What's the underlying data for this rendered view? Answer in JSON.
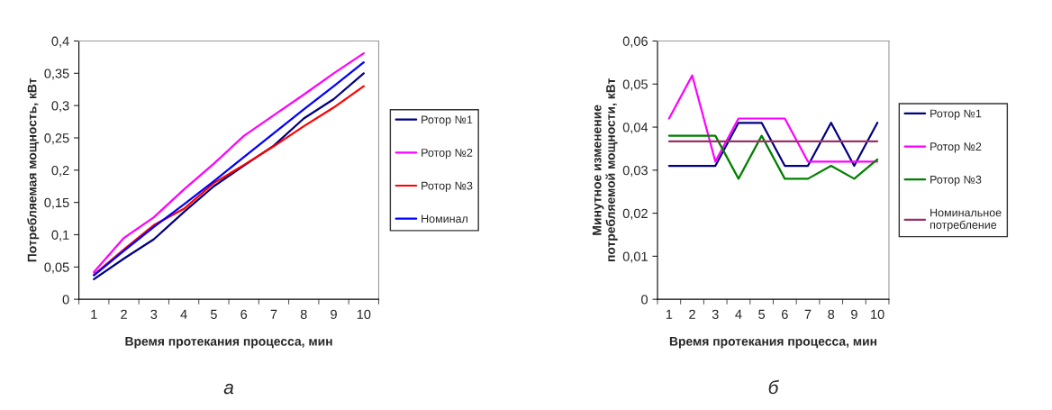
{
  "chart_data": [
    {
      "type": "line",
      "xlabel": "Время протекания процесса, мин",
      "ylabel": "Потребляемая мощность, кВт",
      "categories": [
        "1",
        "2",
        "3",
        "4",
        "5",
        "6",
        "7",
        "8",
        "9",
        "10"
      ],
      "series": [
        {
          "name": "Ротор №1",
          "color": "#000080",
          "values": [
            0.031,
            0.063,
            0.093,
            0.135,
            0.175,
            0.207,
            0.238,
            0.28,
            0.31,
            0.35
          ]
        },
        {
          "name": "Ротор №2",
          "color": "#ff00ff",
          "values": [
            0.042,
            0.095,
            0.127,
            0.17,
            0.21,
            0.253,
            0.285,
            0.317,
            0.35,
            0.381
          ]
        },
        {
          "name": "Ротор №3",
          "color": "#ff0000",
          "values": [
            0.038,
            0.077,
            0.115,
            0.14,
            0.18,
            0.208,
            0.237,
            0.268,
            0.297,
            0.33
          ]
        },
        {
          "name": "Номинал",
          "color": "#0000ff",
          "values": [
            0.037,
            0.075,
            0.112,
            0.147,
            0.183,
            0.22,
            0.257,
            0.294,
            0.33,
            0.367
          ]
        }
      ],
      "ylim": [
        0,
        0.4
      ],
      "yticks": [
        0,
        {
          "value": 0.05,
          "label": "0,05"
        },
        {
          "value": 0.1,
          "label": "0,1"
        },
        {
          "value": 0.15,
          "label": "0,15"
        },
        {
          "value": 0.2,
          "label": "0,2"
        },
        {
          "value": 0.25,
          "label": "0,25"
        },
        {
          "value": 0.3,
          "label": "0,3"
        },
        {
          "value": 0.35,
          "label": "0,35"
        },
        {
          "value": 0.4,
          "label": "0,4"
        }
      ],
      "legend": "right",
      "grid": false,
      "annotations": [
        "а"
      ]
    },
    {
      "type": "line",
      "xlabel": "Время протекания процесса, мин",
      "ylabel": "Минутное изменение\nпотребляемой мощности, кВт",
      "categories": [
        "1",
        "2",
        "3",
        "4",
        "5",
        "6",
        "7",
        "8",
        "9",
        "10"
      ],
      "series": [
        {
          "name": "Ротор №1",
          "color": "#000080",
          "values": [
            0.031,
            0.031,
            0.031,
            0.041,
            0.041,
            0.031,
            0.031,
            0.041,
            0.031,
            0.041
          ]
        },
        {
          "name": "Ротор №2",
          "color": "#ff00ff",
          "values": [
            0.042,
            0.052,
            0.032,
            0.042,
            0.042,
            0.042,
            0.032,
            0.032,
            0.032,
            0.032
          ]
        },
        {
          "name": "Ротор №3",
          "color": "#008000",
          "values": [
            0.038,
            0.038,
            0.038,
            0.028,
            0.038,
            0.028,
            0.028,
            0.031,
            0.028,
            0.0325
          ]
        },
        {
          "name": "Номинальное потребление",
          "color": "#993366",
          "values": [
            0.0367,
            0.0367,
            0.0367,
            0.0367,
            0.0367,
            0.0367,
            0.0367,
            0.0367,
            0.0367,
            0.0367
          ]
        }
      ],
      "ylim": [
        0,
        0.06
      ],
      "yticks": [
        0,
        {
          "value": 0.01,
          "label": "0,01"
        },
        {
          "value": 0.02,
          "label": "0,02"
        },
        {
          "value": 0.03,
          "label": "0,03"
        },
        {
          "value": 0.04,
          "label": "0,04"
        },
        {
          "value": 0.05,
          "label": "0,05"
        },
        {
          "value": 0.06,
          "label": "0,06"
        }
      ],
      "legend": "right",
      "grid": false,
      "annotations": [
        "б"
      ]
    }
  ]
}
